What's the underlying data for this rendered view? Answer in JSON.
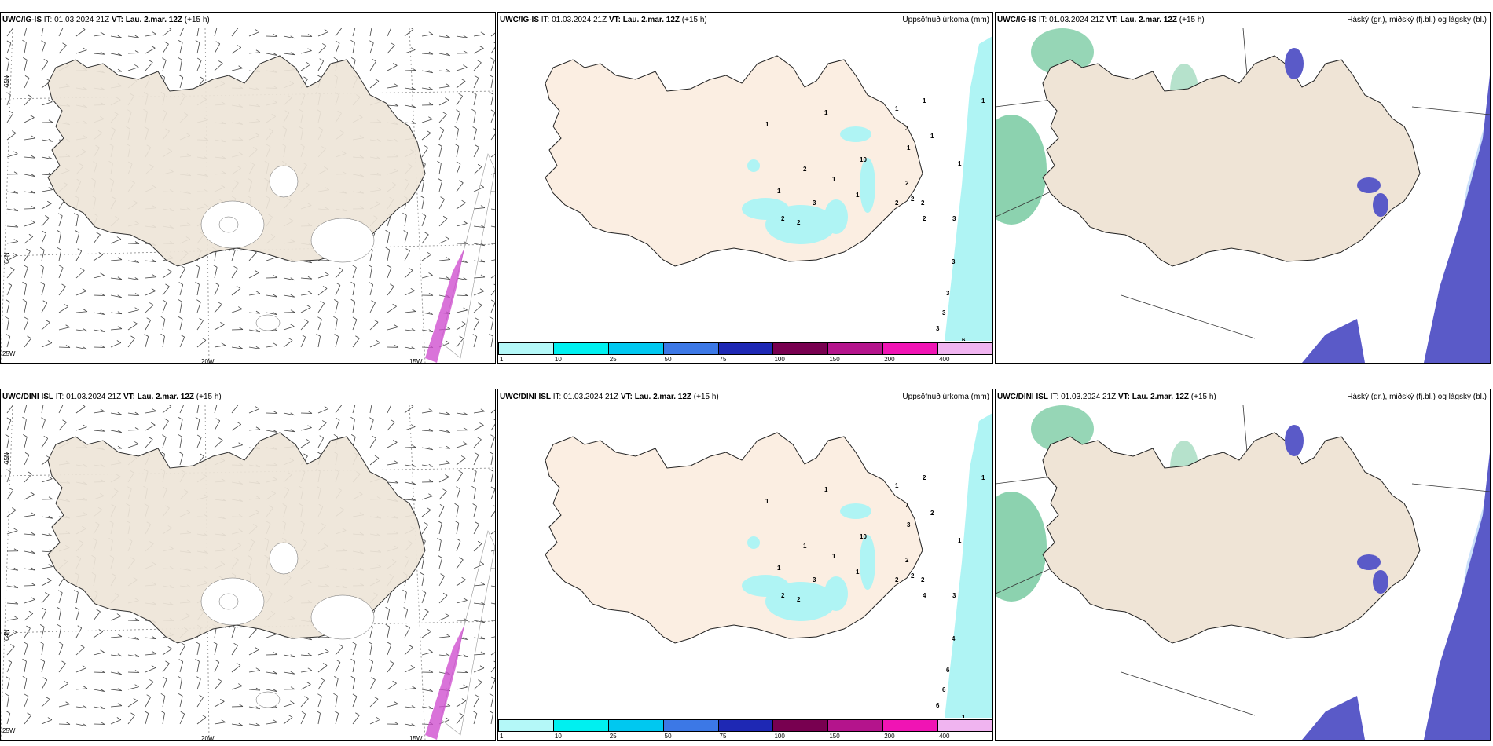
{
  "panels": [
    {
      "id": "p1",
      "model": "UWC/IG-IS",
      "it_label": "IT:",
      "it": "01.03.2024 21Z",
      "vt_label": "VT:",
      "vt": "Lau. 2.mar. 12Z",
      "lead": "(+15 h)",
      "right_title": "",
      "kind": "wind",
      "grid_labels": {
        "lat1": "65N",
        "lat2": "64N",
        "bottom1": "25W",
        "bottom2": "20W",
        "bottom3": "15W"
      }
    },
    {
      "id": "p2",
      "model": "UWC/IG-IS",
      "it_label": "IT:",
      "it": "01.03.2024 21Z",
      "vt_label": "VT:",
      "vt": "Lau. 2.mar. 12Z",
      "lead": "(+15 h)",
      "right_title": "Uppsöfnuð úrkoma (mm)",
      "kind": "precip",
      "numbers": [
        "1",
        "1",
        "1",
        "1",
        "1",
        "1",
        "3",
        "10",
        "2",
        "1",
        "1",
        "2",
        "3",
        "2",
        "1",
        "2",
        "2",
        "2",
        "2",
        "1",
        "2",
        "3",
        "3",
        "3",
        "3",
        "3",
        "6",
        "1"
      ]
    },
    {
      "id": "p3",
      "model": "UWC/IG-IS",
      "it_label": "IT:",
      "it": "01.03.2024 21Z",
      "vt_label": "VT:",
      "vt": "Lau. 2.mar. 12Z",
      "lead": "(+15 h)",
      "right_title": "Háský (gr.), miðský (fj.bl.) og lágský (bl.)",
      "kind": "cloud"
    },
    {
      "id": "p4",
      "model": "UWC/DINI ISL",
      "it_label": "IT:",
      "it": "01.03.2024 21Z",
      "vt_label": "VT:",
      "vt": "Lau. 2.mar. 12Z",
      "lead": "(+15 h)",
      "right_title": "",
      "kind": "wind",
      "grid_labels": {
        "lat1": "65N",
        "lat2": "64N",
        "bottom1": "25W",
        "bottom2": "20W",
        "bottom3": "15W"
      }
    },
    {
      "id": "p5",
      "model": "UWC/DINI ISL",
      "it_label": "IT:",
      "it": "01.03.2024 21Z",
      "vt_label": "VT:",
      "vt": "Lau. 2.mar. 12Z",
      "lead": "(+15 h)",
      "right_title": "Uppsöfnuð úrkoma (mm)",
      "kind": "precip",
      "numbers": [
        "1",
        "1",
        "1",
        "2",
        "2",
        "3",
        "7",
        "10",
        "1",
        "1",
        "1",
        "2",
        "3",
        "2",
        "1",
        "2",
        "2",
        "2",
        "2",
        "1",
        "4",
        "3",
        "4",
        "6",
        "6",
        "6",
        "1",
        "1"
      ]
    },
    {
      "id": "p6",
      "model": "UWC/DINI ISL",
      "it_label": "IT:",
      "it": "01.03.2024 21Z",
      "vt_label": "VT:",
      "vt": "Lau. 2.mar. 12Z",
      "lead": "(+15 h)",
      "right_title": "Háský (gr.), miðský (fj.bl.) og lágský (bl.)",
      "kind": "cloud"
    }
  ],
  "colorbar": {
    "ticks": [
      "1",
      "10",
      "25",
      "50",
      "75",
      "100",
      "150",
      "200",
      "400"
    ],
    "colors": [
      "#b4f8f8",
      "#00f0f0",
      "#00c8f0",
      "#3c78e6",
      "#1e28b4",
      "#780050",
      "#b4148c",
      "#f014b4",
      "#f0b4f0"
    ]
  },
  "colors": {
    "land": "#efe4d6",
    "land_precip": "#fbeee2",
    "wind_land": "#eee5d8",
    "precip_light": "#aff4f4",
    "cloud_high": "#2ead6e",
    "cloud_mid": "#5a5ac8",
    "cloud_low": "#6ea8f0"
  }
}
